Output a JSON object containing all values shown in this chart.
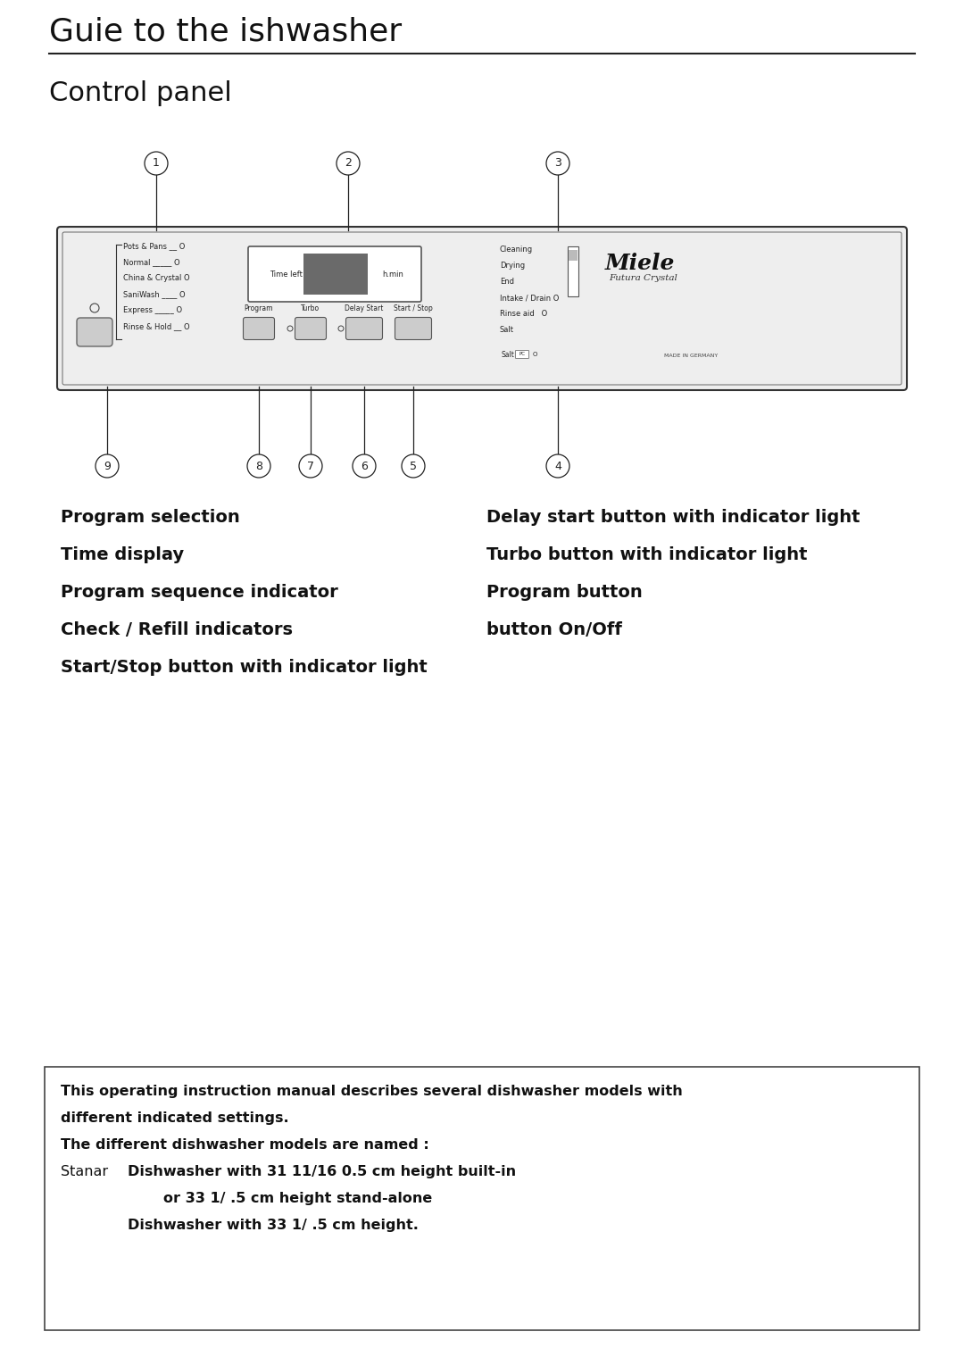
{
  "title": "Guie to the ishwasher",
  "subtitle": "Control panel",
  "bg_color": "#ffffff",
  "title_fontsize": 26,
  "subtitle_fontsize": 22,
  "left_labels": [
    "Program selection",
    "Time display",
    "Program sequence indicator",
    "Check / Refill indicators",
    "Start/Stop button with indicator light"
  ],
  "right_labels": [
    "Delay start button with indicator light",
    "Turbo button with indicator light",
    "Program button",
    "button On/Off"
  ],
  "program_list": [
    "Pots & Pans",
    "Normal",
    "China & Crystal",
    "SaniWash",
    "Express",
    "Rinse & Hold"
  ],
  "program_indicators": [
    "__ O",
    "_____ O",
    "O",
    "____ O",
    "_____ O",
    "__ O"
  ],
  "status_list": [
    "Cleaning",
    "Drying",
    "End",
    "Intake / Drain O",
    "Rinse aid   O",
    "Salt"
  ],
  "button_labels": [
    "Program",
    "Turbo",
    "Delay Start",
    "Start / Stop"
  ],
  "note_line1": "This operating instruction manual describes several dishwasher models with",
  "note_line2": "different indicated settings.",
  "note_line3": "The different dishwasher models are named :",
  "note_stanar": "Stanar",
  "note_line4": "Dishwasher with 31 11/16 0.5 cm height built-in",
  "note_line5": "or 33 1/ .5 cm height stand-alone",
  "note_line6": "Dishwasher with 33 1/ .5 cm height."
}
